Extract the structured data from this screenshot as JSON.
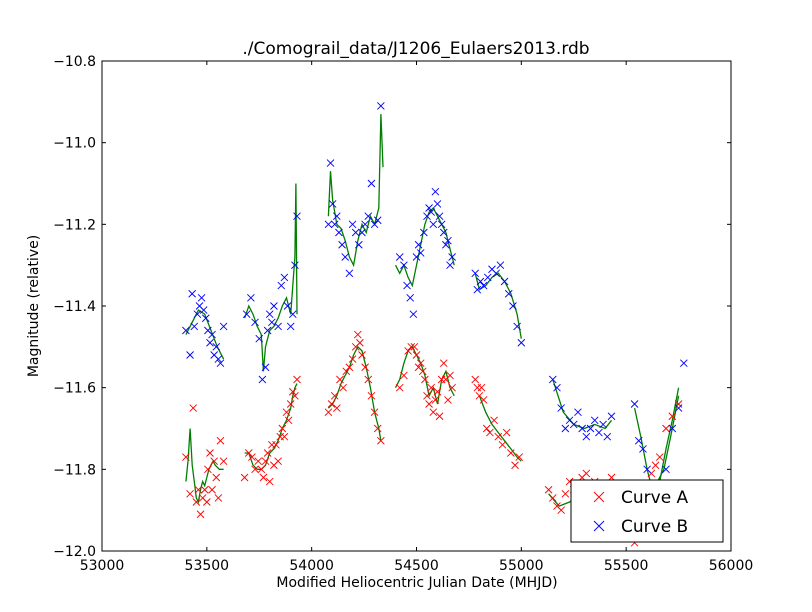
{
  "chart_data": {
    "type": "scatter",
    "title": "./Comograil_data/J1206_Eulaers2013.rdb",
    "xlabel": "Modified Heliocentric Julian Date (MHJD)",
    "ylabel": "Magnitude (relative)",
    "xlim": [
      53000,
      56000
    ],
    "ylim": [
      -10.8,
      -12.0
    ],
    "y_inverted": true,
    "grid": false,
    "legend_position": "lower-right",
    "xticks": [
      "53000",
      "53500",
      "54000",
      "54500",
      "55000",
      "55500",
      "56000"
    ],
    "yticks": [
      "−10.8",
      "−11.0",
      "−11.2",
      "−11.4",
      "−11.6",
      "−11.8",
      "−12.0"
    ],
    "xtick_values": [
      53000,
      53500,
      54000,
      54500,
      55000,
      55500,
      56000
    ],
    "ytick_values": [
      -10.8,
      -11.0,
      -11.2,
      -11.4,
      -11.6,
      -11.8,
      -12.0
    ],
    "colors": {
      "curve_a": "#ff0000",
      "curve_b": "#0000ff",
      "fit": "#007f00"
    },
    "series": [
      {
        "name": "Curve A",
        "marker": "x",
        "color": "#ff0000",
        "x": [
          53400,
          53420,
          53435,
          53450,
          53460,
          53470,
          53480,
          53490,
          53500,
          53505,
          53515,
          53525,
          53535,
          53545,
          53555,
          53565,
          53580,
          53680,
          53700,
          53715,
          53730,
          53745,
          53760,
          53770,
          53780,
          53790,
          53800,
          53810,
          53820,
          53830,
          53840,
          53850,
          53860,
          53870,
          53880,
          53890,
          53900,
          53910,
          53920,
          53930,
          54080,
          54095,
          54110,
          54120,
          54135,
          54150,
          54165,
          54180,
          54195,
          54210,
          54220,
          54230,
          54240,
          54255,
          54270,
          54285,
          54300,
          54315,
          54330,
          54420,
          54440,
          54460,
          54475,
          54490,
          54500,
          54510,
          54520,
          54530,
          54540,
          54550,
          54560,
          54570,
          54580,
          54590,
          54600,
          54610,
          54620,
          54630,
          54640,
          54650,
          54660,
          54670,
          54780,
          54790,
          54800,
          54810,
          54820,
          54835,
          54850,
          54870,
          54890,
          54910,
          54930,
          54950,
          54970,
          54990,
          55130,
          55150,
          55170,
          55190,
          55210,
          55230,
          55250,
          55270,
          55290,
          55310,
          55330,
          55350,
          55370,
          55390,
          55410,
          55430,
          55450,
          55480,
          55510,
          55540,
          55560,
          55580,
          55600,
          55620,
          55640,
          55660,
          55690,
          55720,
          55750
        ],
        "y": [
          -11.77,
          -11.86,
          -11.65,
          -11.88,
          -11.85,
          -11.91,
          -11.87,
          -11.85,
          -11.88,
          -11.8,
          -11.76,
          -11.85,
          -11.78,
          -11.82,
          -11.87,
          -11.73,
          -11.78,
          -11.82,
          -11.76,
          -11.77,
          -11.8,
          -11.78,
          -11.8,
          -11.82,
          -11.78,
          -11.76,
          -11.83,
          -11.74,
          -11.79,
          -11.74,
          -11.78,
          -11.72,
          -11.7,
          -11.72,
          -11.66,
          -11.68,
          -11.64,
          -11.61,
          -11.62,
          -11.58,
          -11.66,
          -11.64,
          -11.62,
          -11.65,
          -11.58,
          -11.6,
          -11.56,
          -11.55,
          -11.53,
          -11.5,
          -11.47,
          -11.49,
          -11.52,
          -11.55,
          -11.58,
          -11.62,
          -11.66,
          -11.7,
          -11.73,
          -11.6,
          -11.57,
          -11.51,
          -11.5,
          -11.5,
          -11.52,
          -11.55,
          -11.54,
          -11.56,
          -11.58,
          -11.62,
          -11.64,
          -11.6,
          -11.66,
          -11.63,
          -11.61,
          -11.67,
          -11.58,
          -11.54,
          -11.58,
          -11.63,
          -11.57,
          -11.6,
          -11.58,
          -11.6,
          -11.62,
          -11.6,
          -11.63,
          -11.7,
          -11.71,
          -11.68,
          -11.72,
          -11.74,
          -11.71,
          -11.76,
          -11.79,
          -11.77,
          -11.85,
          -11.87,
          -11.89,
          -11.9,
          -11.86,
          -11.83,
          -11.85,
          -11.87,
          -11.82,
          -11.81,
          -11.84,
          -11.83,
          -11.86,
          -11.88,
          -11.85,
          -11.82,
          -11.87,
          -11.9,
          -11.85,
          -11.98,
          -11.92,
          -11.88,
          -11.85,
          -11.81,
          -11.79,
          -11.77,
          -11.7,
          -11.67,
          -11.64
        ]
      },
      {
        "name": "Curve B",
        "marker": "x",
        "color": "#0000ff",
        "x": [
          53400,
          53420,
          53430,
          53440,
          53455,
          53465,
          53475,
          53485,
          53495,
          53505,
          53515,
          53525,
          53535,
          53545,
          53555,
          53565,
          53580,
          53690,
          53710,
          53730,
          53750,
          53765,
          53780,
          53790,
          53800,
          53810,
          53820,
          53840,
          53855,
          53870,
          53885,
          53900,
          53910,
          53920,
          53930,
          54080,
          54090,
          54100,
          54110,
          54120,
          54130,
          54145,
          54160,
          54180,
          54195,
          54210,
          54225,
          54240,
          54255,
          54270,
          54285,
          54300,
          54315,
          54330,
          54420,
          54440,
          54455,
          54470,
          54485,
          54500,
          54510,
          54520,
          54535,
          54550,
          54560,
          54570,
          54580,
          54590,
          54600,
          54610,
          54620,
          54630,
          54640,
          54650,
          54660,
          54670,
          54780,
          54790,
          54805,
          54820,
          54840,
          54860,
          54880,
          54900,
          54920,
          54940,
          54960,
          54980,
          55000,
          55150,
          55170,
          55190,
          55210,
          55230,
          55250,
          55270,
          55290,
          55310,
          55330,
          55350,
          55370,
          55390,
          55410,
          55430,
          55540,
          55560,
          55580,
          55600,
          55620,
          55640,
          55660,
          55690,
          55720,
          55750,
          55775
        ],
        "y": [
          -11.46,
          -11.52,
          -11.37,
          -11.45,
          -11.42,
          -11.4,
          -11.38,
          -11.41,
          -11.43,
          -11.46,
          -11.49,
          -11.47,
          -11.52,
          -11.5,
          -11.53,
          -11.54,
          -11.45,
          -11.42,
          -11.38,
          -11.44,
          -11.48,
          -11.58,
          -11.55,
          -11.46,
          -11.42,
          -11.44,
          -11.4,
          -11.45,
          -11.35,
          -11.33,
          -11.4,
          -11.45,
          -11.42,
          -11.3,
          -11.18,
          -11.2,
          -11.05,
          -11.15,
          -11.2,
          -11.18,
          -11.22,
          -11.25,
          -11.28,
          -11.32,
          -11.2,
          -11.22,
          -11.25,
          -11.22,
          -11.2,
          -11.18,
          -11.1,
          -11.2,
          -11.19,
          -10.91,
          -11.28,
          -11.3,
          -11.35,
          -11.38,
          -11.42,
          -11.28,
          -11.25,
          -11.27,
          -11.22,
          -11.18,
          -11.16,
          -11.17,
          -11.2,
          -11.12,
          -11.15,
          -11.18,
          -11.2,
          -11.22,
          -11.25,
          -11.24,
          -11.3,
          -11.28,
          -11.32,
          -11.36,
          -11.34,
          -11.35,
          -11.33,
          -11.31,
          -11.32,
          -11.3,
          -11.34,
          -11.37,
          -11.4,
          -11.45,
          -11.49,
          -11.58,
          -11.6,
          -11.65,
          -11.7,
          -11.68,
          -11.69,
          -11.66,
          -11.7,
          -11.72,
          -11.7,
          -11.68,
          -11.71,
          -11.69,
          -11.72,
          -11.67,
          -11.64,
          -11.73,
          -11.75,
          -11.8,
          -11.86,
          -11.88,
          -11.84,
          -11.8,
          -11.7,
          -11.65,
          -11.54
        ]
      }
    ],
    "fits": [
      {
        "color": "#007f00",
        "x": [
          53400,
          53410,
          53420,
          53430,
          53440,
          53450,
          53460,
          53470,
          53480,
          53490,
          53500,
          53510,
          53520,
          53530,
          53540,
          53560,
          53580
        ],
        "y": [
          -11.83,
          -11.78,
          -11.7,
          -11.79,
          -11.83,
          -11.87,
          -11.88,
          -11.85,
          -11.83,
          -11.84,
          -11.82,
          -11.8,
          -11.79,
          -11.78,
          -11.79,
          -11.8,
          -11.8
        ]
      },
      {
        "color": "#007f00",
        "x": [
          53680,
          53700,
          53720,
          53740,
          53760,
          53780,
          53800,
          53820,
          53840,
          53860,
          53880,
          53900,
          53910,
          53920,
          53930
        ],
        "y": [
          -11.76,
          -11.76,
          -11.79,
          -11.8,
          -11.8,
          -11.79,
          -11.76,
          -11.75,
          -11.73,
          -11.7,
          -11.68,
          -11.65,
          -11.62,
          -11.6,
          -11.59
        ]
      },
      {
        "color": "#007f00",
        "x": [
          54080,
          54100,
          54120,
          54140,
          54160,
          54180,
          54200,
          54220,
          54240,
          54260,
          54280,
          54300,
          54320,
          54330
        ],
        "y": [
          -11.65,
          -11.64,
          -11.62,
          -11.59,
          -11.57,
          -11.55,
          -11.52,
          -11.5,
          -11.51,
          -11.55,
          -11.6,
          -11.66,
          -11.7,
          -11.73
        ]
      },
      {
        "color": "#007f00",
        "x": [
          54400,
          54420,
          54440,
          54460,
          54480,
          54500,
          54520,
          54540,
          54560,
          54580,
          54600,
          54620,
          54640,
          54660,
          54680
        ],
        "y": [
          -11.6,
          -11.58,
          -11.54,
          -11.51,
          -11.5,
          -11.52,
          -11.54,
          -11.57,
          -11.62,
          -11.6,
          -11.64,
          -11.58,
          -11.56,
          -11.6,
          -11.62
        ]
      },
      {
        "color": "#007f00",
        "x": [
          54800,
          54830,
          54860,
          54890,
          54920,
          54950,
          54980,
          55000
        ],
        "y": [
          -11.62,
          -11.66,
          -11.69,
          -11.71,
          -11.73,
          -11.75,
          -11.77,
          -11.78
        ]
      },
      {
        "color": "#007f00",
        "x": [
          55130,
          55180,
          55230,
          55280,
          55330,
          55380,
          55430,
          55480,
          55530,
          55580,
          55630,
          55680,
          55720,
          55750
        ],
        "y": [
          -11.86,
          -11.89,
          -11.88,
          -11.86,
          -11.85,
          -11.86,
          -11.87,
          -11.88,
          -11.89,
          -11.88,
          -11.85,
          -11.8,
          -11.7,
          -11.62
        ]
      },
      {
        "color": "#007f00",
        "x": [
          53400,
          53430,
          53460,
          53490,
          53520,
          53550,
          53580
        ],
        "y": [
          -11.47,
          -11.44,
          -11.41,
          -11.42,
          -11.46,
          -11.5,
          -11.53
        ]
      },
      {
        "color": "#007f00",
        "x": [
          53680,
          53700,
          53720,
          53740,
          53760,
          53770,
          53780,
          53800,
          53820,
          53840,
          53860,
          53880,
          53900,
          53910,
          53920,
          53925,
          53930
        ],
        "y": [
          -11.43,
          -11.4,
          -11.42,
          -11.45,
          -11.47,
          -11.56,
          -11.5,
          -11.46,
          -11.45,
          -11.43,
          -11.4,
          -11.38,
          -11.42,
          -11.35,
          -11.28,
          -11.1,
          -11.42
        ]
      },
      {
        "color": "#007f00",
        "x": [
          54080,
          54090,
          54100,
          54120,
          54140,
          54160,
          54180,
          54200,
          54220,
          54240,
          54260,
          54280,
          54300,
          54320,
          54330,
          54340
        ],
        "y": [
          -11.18,
          -11.07,
          -11.14,
          -11.2,
          -11.21,
          -11.24,
          -11.28,
          -11.3,
          -11.24,
          -11.2,
          -11.22,
          -11.18,
          -11.2,
          -11.16,
          -10.93,
          -11.06
        ]
      },
      {
        "color": "#007f00",
        "x": [
          54400,
          54420,
          54440,
          54460,
          54480,
          54500,
          54520,
          54540,
          54560,
          54580,
          54600,
          54620,
          54640,
          54660,
          54680
        ],
        "y": [
          -11.3,
          -11.32,
          -11.3,
          -11.33,
          -11.35,
          -11.3,
          -11.25,
          -11.2,
          -11.17,
          -11.16,
          -11.18,
          -11.2,
          -11.22,
          -11.26,
          -11.3
        ]
      },
      {
        "color": "#007f00",
        "x": [
          54780,
          54800,
          54830,
          54860,
          54890,
          54920,
          54950,
          54980,
          55000
        ],
        "y": [
          -11.32,
          -11.36,
          -11.35,
          -11.33,
          -11.32,
          -11.34,
          -11.37,
          -11.42,
          -11.48
        ]
      },
      {
        "color": "#007f00",
        "x": [
          55150,
          55200,
          55250,
          55300,
          55350,
          55400,
          55430
        ],
        "y": [
          -11.58,
          -11.66,
          -11.69,
          -11.7,
          -11.69,
          -11.7,
          -11.68
        ]
      },
      {
        "color": "#007f00",
        "x": [
          55540,
          55570,
          55600,
          55630,
          55660,
          55690,
          55720,
          55750
        ],
        "y": [
          -11.65,
          -11.72,
          -11.8,
          -11.86,
          -11.83,
          -11.75,
          -11.68,
          -11.6
        ]
      }
    ]
  }
}
